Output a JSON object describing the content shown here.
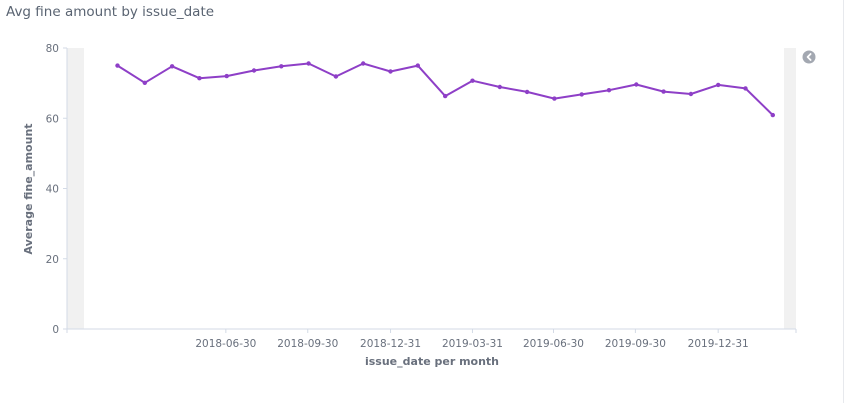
{
  "panel": {
    "title": "Avg fine amount by issue_date"
  },
  "chart_data": {
    "type": "line",
    "title": "Avg fine amount by issue_date",
    "xlabel": "issue_date per month",
    "ylabel": "Average fine_amount",
    "ylim": [
      0,
      80
    ],
    "xlim": [
      "2018-01",
      "2020-03"
    ],
    "y_ticks": [
      0,
      20,
      40,
      60,
      80
    ],
    "x_ticks": [
      "2018-06-30",
      "2018-09-30",
      "2018-12-31",
      "2019-03-31",
      "2019-06-30",
      "2019-09-30",
      "2019-12-31"
    ],
    "grid": false,
    "legend": "none",
    "series": [
      {
        "color": "#8e3fc7",
        "x": [
          "2018-03",
          "2018-04",
          "2018-05",
          "2018-06",
          "2018-07",
          "2018-08",
          "2018-09",
          "2018-10",
          "2018-11",
          "2018-12",
          "2019-01",
          "2019-02",
          "2019-03",
          "2019-04",
          "2019-05",
          "2019-06",
          "2019-07",
          "2019-08",
          "2019-09",
          "2019-10",
          "2019-11",
          "2019-12",
          "2020-01",
          "2020-02",
          "2020-03"
        ],
        "values": [
          75.0,
          70.1,
          74.8,
          71.4,
          72.0,
          73.6,
          74.8,
          75.6,
          71.9,
          75.6,
          73.3,
          75.0,
          66.3,
          70.7,
          68.9,
          67.5,
          65.6,
          66.8,
          68.0,
          69.6,
          67.6,
          66.9,
          69.5,
          68.5,
          60.9
        ]
      }
    ]
  },
  "controls": {
    "collapse_icon": "chevron-left-circle-icon"
  }
}
